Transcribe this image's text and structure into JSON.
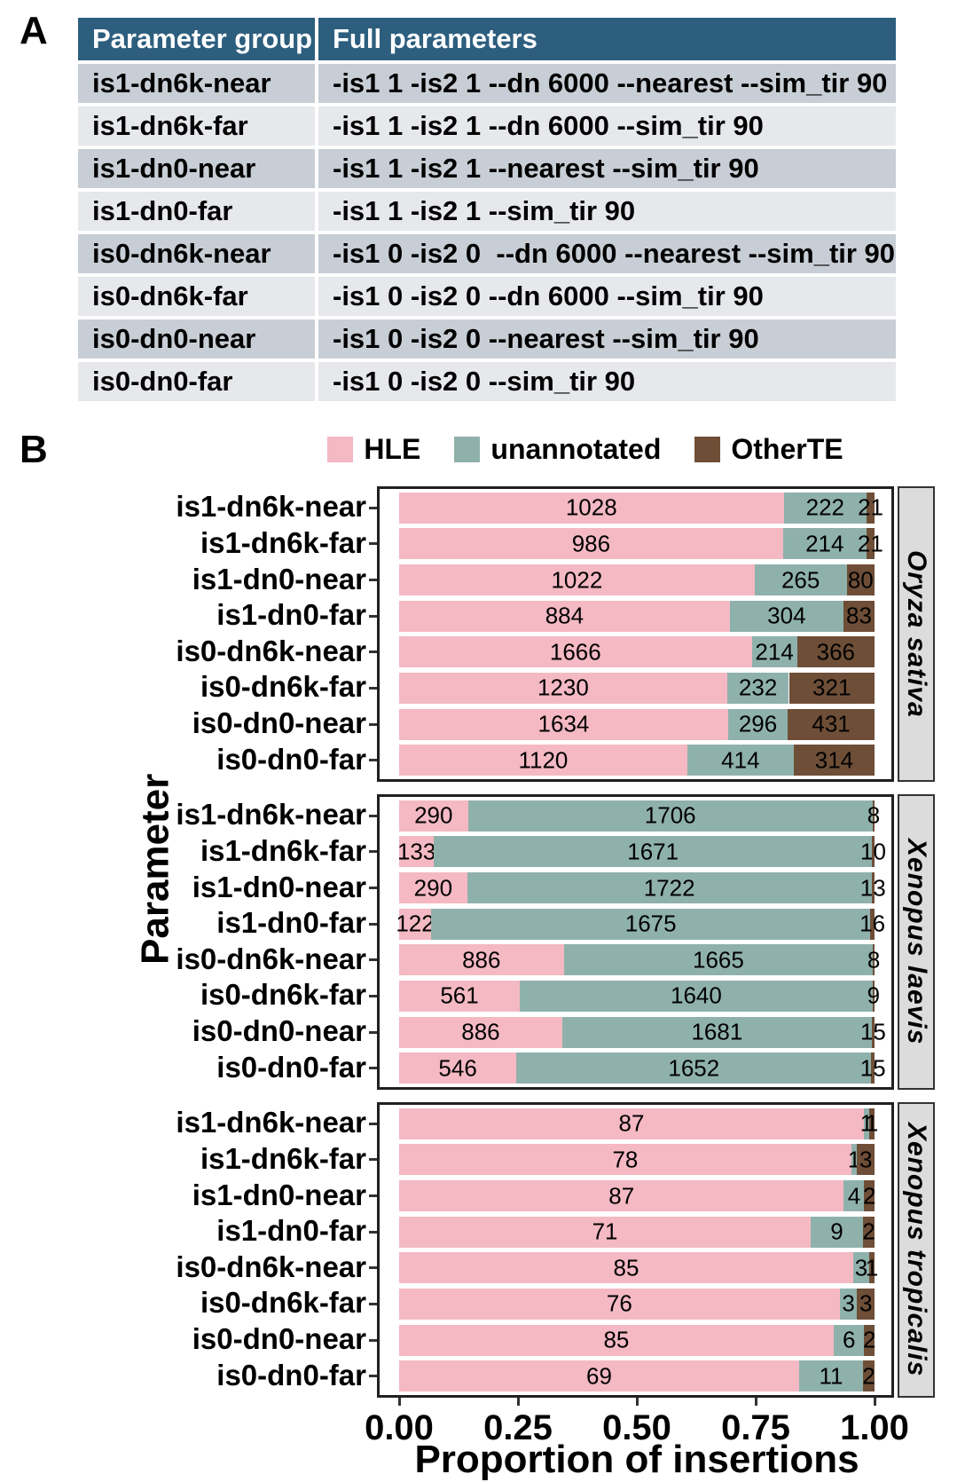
{
  "panel_a": {
    "label": "A",
    "table": {
      "headers": [
        "Parameter group",
        "Full parameters"
      ],
      "header_bg": "#2d5e7e",
      "row_bg_odd": "#c8ced5",
      "row_bg_even": "#e6e8eb",
      "rows": [
        [
          "is1-dn6k-near",
          "-is1 1 -is2 1 --dn 6000 --nearest --sim_tir 90"
        ],
        [
          "is1-dn6k-far",
          "-is1 1 -is2 1 --dn 6000 --sim_tir 90"
        ],
        [
          "is1-dn0-near",
          "-is1 1 -is2 1 --nearest --sim_tir 90"
        ],
        [
          "is1-dn0-far",
          "-is1 1 -is2 1 --sim_tir 90"
        ],
        [
          "is0-dn6k-near",
          "-is1 0 -is2 0  --dn 6000 --nearest --sim_tir 90"
        ],
        [
          "is0-dn6k-far",
          "-is1 0 -is2 0 --dn 6000 --sim_tir 90"
        ],
        [
          "is0-dn0-near",
          "-is1 0 -is2 0 --nearest --sim_tir 90"
        ],
        [
          "is0-dn0-far",
          "-is1 0 -is2 0 --sim_tir 90"
        ]
      ]
    }
  },
  "panel_b": {
    "label": "B",
    "chart_data": {
      "type": "bar",
      "orientation": "horizontal",
      "stacked": true,
      "normalized": true,
      "xlabel": "Proportion of insertions",
      "ylabel": "Parameter",
      "xlim": [
        0,
        1
      ],
      "x_ticks": [
        "0.00",
        "0.25",
        "0.50",
        "0.75",
        "1.00"
      ],
      "grid": false,
      "legend_position": "top",
      "legend": [
        {
          "label": "HLE",
          "color": "#f4b9c3"
        },
        {
          "label": "unannotated",
          "color": "#8fb1ab"
        },
        {
          "label": "OtherTE",
          "color": "#6e4e37"
        }
      ],
      "categories": [
        "is1-dn6k-near",
        "is1-dn6k-far",
        "is1-dn0-near",
        "is1-dn0-far",
        "is0-dn6k-near",
        "is0-dn6k-far",
        "is0-dn0-near",
        "is0-dn0-far"
      ],
      "facets": [
        {
          "name": "Oryza sativa",
          "rows": [
            [
              1028,
              222,
              21
            ],
            [
              986,
              214,
              21
            ],
            [
              1022,
              265,
              80
            ],
            [
              884,
              304,
              83
            ],
            [
              1666,
              214,
              366
            ],
            [
              1230,
              232,
              321
            ],
            [
              1634,
              296,
              431
            ],
            [
              1120,
              414,
              314
            ]
          ]
        },
        {
          "name": "Xenopus laevis",
          "rows": [
            [
              290,
              1706,
              8
            ],
            [
              133,
              1671,
              10
            ],
            [
              290,
              1722,
              13
            ],
            [
              122,
              1675,
              16
            ],
            [
              886,
              1665,
              8
            ],
            [
              561,
              1640,
              9
            ],
            [
              886,
              1681,
              15
            ],
            [
              546,
              1652,
              15
            ]
          ]
        },
        {
          "name": "Xenopus tropicalis",
          "rows": [
            [
              87,
              1,
              1
            ],
            [
              78,
              1,
              3
            ],
            [
              87,
              4,
              2
            ],
            [
              71,
              9,
              2
            ],
            [
              85,
              3,
              1
            ],
            [
              76,
              3,
              3
            ],
            [
              85,
              6,
              2
            ],
            [
              69,
              11,
              2
            ]
          ]
        }
      ]
    }
  }
}
